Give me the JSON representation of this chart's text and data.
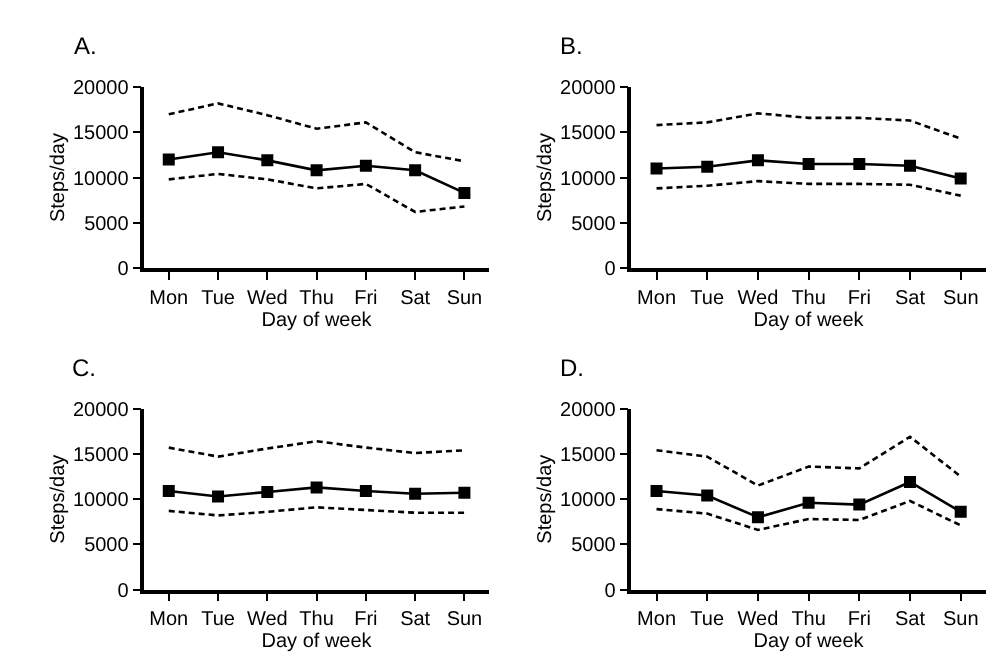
{
  "chart_data": [
    {
      "type": "line",
      "title": "A.",
      "xlabel": "Day of week",
      "ylabel": "Steps/day",
      "categories": [
        "Mon",
        "Tue",
        "Wed",
        "Thu",
        "Fri",
        "Sat",
        "Sun"
      ],
      "ylim": [
        0,
        20000
      ],
      "yticks": [
        0,
        5000,
        10000,
        15000,
        20000
      ],
      "series": [
        {
          "color": "#000000",
          "marker": "square",
          "line_style": "solid",
          "values": [
            12000,
            12800,
            11900,
            10800,
            11300,
            10800,
            8300
          ]
        },
        {
          "color": "#000000",
          "marker": "none",
          "line_style": "dashed",
          "values": [
            17000,
            18200,
            16900,
            15400,
            16100,
            12800,
            11800
          ]
        },
        {
          "color": "#000000",
          "marker": "none",
          "line_style": "dashed",
          "values": [
            9800,
            10400,
            9800,
            8800,
            9300,
            6200,
            6800
          ]
        }
      ]
    },
    {
      "type": "line",
      "title": "B.",
      "xlabel": "Day of week",
      "ylabel": "Steps/day",
      "categories": [
        "Mon",
        "Tue",
        "Wed",
        "Thu",
        "Fri",
        "Sat",
        "Sun"
      ],
      "ylim": [
        0,
        20000
      ],
      "yticks": [
        0,
        5000,
        10000,
        15000,
        20000
      ],
      "series": [
        {
          "color": "#000000",
          "marker": "square",
          "line_style": "solid",
          "values": [
            11000,
            11200,
            11900,
            11500,
            11500,
            11300,
            9900
          ]
        },
        {
          "color": "#000000",
          "marker": "none",
          "line_style": "dashed",
          "values": [
            15800,
            16100,
            17100,
            16600,
            16600,
            16300,
            14300
          ]
        },
        {
          "color": "#000000",
          "marker": "none",
          "line_style": "dashed",
          "values": [
            8800,
            9100,
            9600,
            9300,
            9300,
            9200,
            8000
          ]
        }
      ]
    },
    {
      "type": "line",
      "title": "C.",
      "xlabel": "Day of week",
      "ylabel": "Steps/day",
      "categories": [
        "Mon",
        "Tue",
        "Wed",
        "Thu",
        "Fri",
        "Sat",
        "Sun"
      ],
      "ylim": [
        0,
        20000
      ],
      "yticks": [
        0,
        5000,
        10000,
        15000,
        20000
      ],
      "series": [
        {
          "color": "#000000",
          "marker": "square",
          "line_style": "solid",
          "values": [
            10900,
            10300,
            10800,
            11300,
            10900,
            10600,
            10700
          ]
        },
        {
          "color": "#000000",
          "marker": "none",
          "line_style": "dashed",
          "values": [
            15700,
            14700,
            15600,
            16400,
            15700,
            15100,
            15400
          ]
        },
        {
          "color": "#000000",
          "marker": "none",
          "line_style": "dashed",
          "values": [
            8700,
            8200,
            8600,
            9100,
            8800,
            8500,
            8500
          ]
        }
      ]
    },
    {
      "type": "line",
      "title": "D.",
      "xlabel": "Day of week",
      "ylabel": "Steps/day",
      "categories": [
        "Mon",
        "Tue",
        "Wed",
        "Thu",
        "Fri",
        "Sat",
        "Sun"
      ],
      "ylim": [
        0,
        20000
      ],
      "yticks": [
        0,
        5000,
        10000,
        15000,
        20000
      ],
      "series": [
        {
          "color": "#000000",
          "marker": "square",
          "line_style": "solid",
          "values": [
            10900,
            10400,
            8000,
            9600,
            9400,
            11900,
            8600
          ]
        },
        {
          "color": "#000000",
          "marker": "none",
          "line_style": "dashed",
          "values": [
            15400,
            14700,
            11500,
            13600,
            13400,
            16900,
            12500
          ]
        },
        {
          "color": "#000000",
          "marker": "none",
          "line_style": "dashed",
          "values": [
            8900,
            8400,
            6600,
            7800,
            7700,
            9800,
            7100
          ]
        }
      ]
    }
  ]
}
